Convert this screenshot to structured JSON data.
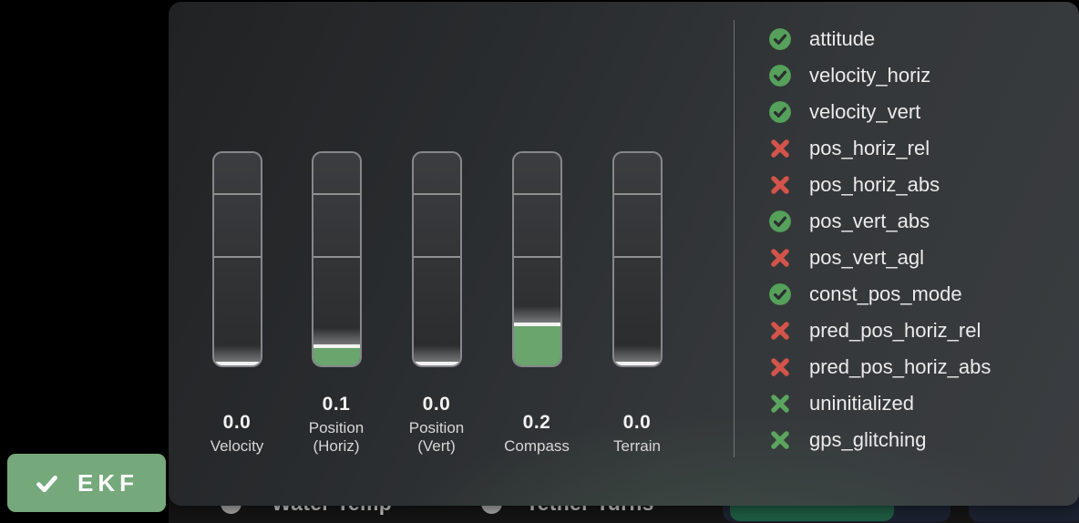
{
  "popup": {
    "gauges": [
      {
        "value": "0.0",
        "caption": "Velocity",
        "fill": 0.0
      },
      {
        "value": "0.1",
        "caption": "Position\n(Horiz)",
        "fill": 0.1
      },
      {
        "value": "0.0",
        "caption": "Position\n(Vert)",
        "fill": 0.0
      },
      {
        "value": "0.2",
        "caption": "Compass",
        "fill": 0.2
      },
      {
        "value": "0.0",
        "caption": "Terrain",
        "fill": 0.0
      }
    ],
    "flags": [
      {
        "label": "attitude",
        "status": "pass"
      },
      {
        "label": "velocity_horiz",
        "status": "pass"
      },
      {
        "label": "velocity_vert",
        "status": "pass"
      },
      {
        "label": "pos_horiz_rel",
        "status": "fail"
      },
      {
        "label": "pos_horiz_abs",
        "status": "fail"
      },
      {
        "label": "pos_vert_abs",
        "status": "pass"
      },
      {
        "label": "pos_vert_agl",
        "status": "fail"
      },
      {
        "label": "const_pos_mode",
        "status": "pass"
      },
      {
        "label": "pred_pos_horiz_rel",
        "status": "fail"
      },
      {
        "label": "pred_pos_horiz_abs",
        "status": "fail"
      },
      {
        "label": "uninitialized",
        "status": "inactive"
      },
      {
        "label": "gps_glitching",
        "status": "inactive"
      }
    ]
  },
  "ekf_button": {
    "label": "EKF"
  },
  "background_bar": {
    "items": [
      {
        "label": "Water Temp"
      },
      {
        "label": "Tether Turns"
      }
    ]
  },
  "colors": {
    "pass_green": "#55a05a",
    "fail_red": "#d3544a",
    "inactive_green": "#5ba55e",
    "gauge_fill_green": "#6aa56e",
    "ekf_button_green": "#75a87b"
  }
}
